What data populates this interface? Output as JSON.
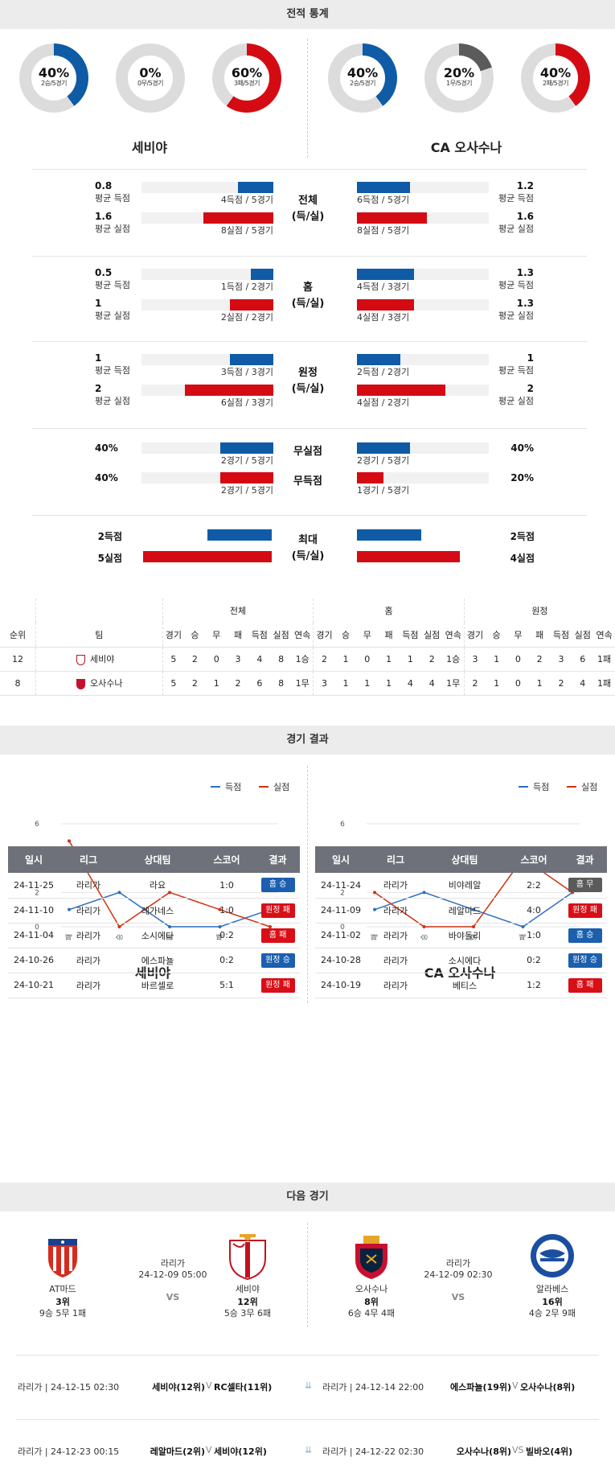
{
  "sections": {
    "stats": "전적 통계",
    "results": "경기 결과",
    "next": "다음 경기"
  },
  "colors": {
    "blue": "#0f5ba6",
    "red": "#d40b13",
    "gray": "#5b5b5b",
    "track": "#dcdcdc"
  },
  "donuts": [
    {
      "pct": "40%",
      "sub": "2승/5경기",
      "value": 0.4,
      "color": "blue"
    },
    {
      "pct": "0%",
      "sub": "0무/5경기",
      "value": 0.0,
      "color": "gray"
    },
    {
      "pct": "60%",
      "sub": "3패/5경기",
      "value": 0.6,
      "color": "red"
    },
    {
      "pct": "40%",
      "sub": "2승/5경기",
      "value": 0.4,
      "color": "blue"
    },
    {
      "pct": "20%",
      "sub": "1무/5경기",
      "value": 0.2,
      "color": "gray"
    },
    {
      "pct": "40%",
      "sub": "2패/5경기",
      "value": 0.4,
      "color": "red"
    }
  ],
  "teams": {
    "home": "세비야",
    "away": "CA 오사수나"
  },
  "groups": [
    {
      "center": [
        "전체",
        "(득/실)"
      ],
      "left": [
        {
          "num": "0.8",
          "lbl": "평균 득점",
          "cap": "4득점 / 5경기",
          "fill": 0.27,
          "color": "blue"
        },
        {
          "num": "1.6",
          "lbl": "평균 실점",
          "cap": "8실점 / 5경기",
          "fill": 0.53,
          "color": "red"
        }
      ],
      "right": [
        {
          "num": "1.2",
          "lbl": "평균 득점",
          "cap": "6득점 / 5경기",
          "fill": 0.4,
          "color": "blue"
        },
        {
          "num": "1.6",
          "lbl": "평균 실점",
          "cap": "8실점 / 5경기",
          "fill": 0.53,
          "color": "red"
        }
      ]
    },
    {
      "center": [
        "홈",
        "(득/실)"
      ],
      "left": [
        {
          "num": "0.5",
          "lbl": "평균 득점",
          "cap": "1득점 / 2경기",
          "fill": 0.17,
          "color": "blue"
        },
        {
          "num": "1",
          "lbl": "평균 실점",
          "cap": "2실점 / 2경기",
          "fill": 0.33,
          "color": "red"
        }
      ],
      "right": [
        {
          "num": "1.3",
          "lbl": "평균 득점",
          "cap": "4득점 / 3경기",
          "fill": 0.43,
          "color": "blue"
        },
        {
          "num": "1.3",
          "lbl": "평균 실점",
          "cap": "4실점 / 3경기",
          "fill": 0.43,
          "color": "red"
        }
      ]
    },
    {
      "center": [
        "원정",
        "(득/실)"
      ],
      "left": [
        {
          "num": "1",
          "lbl": "평균 득점",
          "cap": "3득점 / 3경기",
          "fill": 0.33,
          "color": "blue"
        },
        {
          "num": "2",
          "lbl": "평균 실점",
          "cap": "6실점 / 3경기",
          "fill": 0.67,
          "color": "red"
        }
      ],
      "right": [
        {
          "num": "1",
          "lbl": "평균 득점",
          "cap": "2득점 / 2경기",
          "fill": 0.33,
          "color": "blue"
        },
        {
          "num": "2",
          "lbl": "평균 실점",
          "cap": "4실점 / 2경기",
          "fill": 0.67,
          "color": "red"
        }
      ]
    }
  ],
  "clean": {
    "rows": [
      {
        "center": "무실점",
        "lnum": "40%",
        "lcap": "2경기 / 5경기",
        "lfill": 0.4,
        "rnum": "40%",
        "rcap": "2경기 / 5경기",
        "rfill": 0.4,
        "color": "blue"
      },
      {
        "center": "무득점",
        "lnum": "40%",
        "lcap": "2경기 / 5경기",
        "lfill": 0.4,
        "rnum": "20%",
        "rcap": "1경기 / 5경기",
        "rfill": 0.2,
        "color": "red"
      }
    ]
  },
  "max": {
    "center": [
      "최대",
      "(득/실)"
    ],
    "rows": [
      {
        "lnum": "2득점",
        "lfill": 0.5,
        "rnum": "2득점",
        "rfill": 0.5,
        "color": "blue"
      },
      {
        "lnum": "5실점",
        "lfill": 1.0,
        "rnum": "4실점",
        "rfill": 0.8,
        "color": "red"
      }
    ]
  },
  "standings": {
    "group_headers": [
      "전체",
      "홈",
      "원정"
    ],
    "cols": [
      "순위",
      "팀",
      "경기",
      "승",
      "무",
      "패",
      "득점",
      "실점",
      "연속",
      "경기",
      "승",
      "무",
      "패",
      "득점",
      "실점",
      "연속",
      "경기",
      "승",
      "무",
      "패",
      "득점",
      "실점",
      "연속"
    ],
    "rows": [
      {
        "rank": "12",
        "team": "세비야",
        "vals": [
          "5",
          "2",
          "0",
          "3",
          "4",
          "8",
          "1승",
          "2",
          "1",
          "0",
          "1",
          "1",
          "2",
          "1승",
          "3",
          "1",
          "0",
          "2",
          "3",
          "6",
          "1패"
        ]
      },
      {
        "rank": "8",
        "team": "오사수나",
        "vals": [
          "5",
          "2",
          "1",
          "2",
          "6",
          "8",
          "1무",
          "3",
          "1",
          "1",
          "1",
          "4",
          "4",
          "1무",
          "2",
          "1",
          "0",
          "1",
          "2",
          "4",
          "1패"
        ]
      }
    ]
  },
  "chart_data": [
    {
      "type": "line",
      "x": [
        "패",
        "승",
        "패",
        "패",
        "승"
      ],
      "ylim": [
        0,
        6
      ],
      "yticks": [
        "0",
        "2",
        "4",
        "6"
      ],
      "series": [
        {
          "name": "득점",
          "values": [
            1,
            2,
            0,
            0,
            1
          ],
          "color": "#2c6fbf"
        },
        {
          "name": "실점",
          "values": [
            5,
            0,
            2,
            1,
            0
          ],
          "color": "#d1310f"
        }
      ],
      "legend": "top-right"
    },
    {
      "type": "line",
      "x": [
        "패",
        "승",
        "승",
        "패",
        "무"
      ],
      "ylim": [
        0,
        6
      ],
      "yticks": [
        "0",
        "2",
        "4",
        "6"
      ],
      "series": [
        {
          "name": "득점",
          "values": [
            1,
            2,
            1,
            0,
            2
          ],
          "color": "#2c6fbf"
        },
        {
          "name": "실점",
          "values": [
            2,
            0,
            0,
            4,
            2
          ],
          "color": "#d1310f"
        }
      ],
      "legend": "top-right"
    }
  ],
  "results": {
    "headers": [
      "일시",
      "리그",
      "상대팀",
      "스코어",
      "결과"
    ],
    "left": [
      {
        "date": "24-11-25",
        "league": "라리가",
        "opp": "라요",
        "score": "1:0",
        "res": "홈 승",
        "color": "blue"
      },
      {
        "date": "24-11-10",
        "league": "라리가",
        "opp": "레가네스",
        "score": "1:0",
        "res": "원정 패",
        "color": "red"
      },
      {
        "date": "24-11-04",
        "league": "라리가",
        "opp": "소시에다",
        "score": "0:2",
        "res": "홈 패",
        "color": "red"
      },
      {
        "date": "24-10-26",
        "league": "라리가",
        "opp": "에스파뇰",
        "score": "0:2",
        "res": "원정 승",
        "color": "blue"
      },
      {
        "date": "24-10-21",
        "league": "라리가",
        "opp": "바르셀로",
        "score": "5:1",
        "res": "원정 패",
        "color": "red"
      }
    ],
    "right": [
      {
        "date": "24-11-24",
        "league": "라리가",
        "opp": "비야레알",
        "score": "2:2",
        "res": "홈 무",
        "color": "gray"
      },
      {
        "date": "24-11-09",
        "league": "라리가",
        "opp": "레알마드",
        "score": "4:0",
        "res": "원정 패",
        "color": "red"
      },
      {
        "date": "24-11-02",
        "league": "라리가",
        "opp": "바야돌리",
        "score": "1:0",
        "res": "홈 승",
        "color": "blue"
      },
      {
        "date": "24-10-28",
        "league": "라리가",
        "opp": "소시에다",
        "score": "0:2",
        "res": "원정 승",
        "color": "blue"
      },
      {
        "date": "24-10-19",
        "league": "라리가",
        "opp": "베티스",
        "score": "1:2",
        "res": "홈 패",
        "color": "red"
      }
    ]
  },
  "next": {
    "left": {
      "league": "라리가",
      "time": "24-12-09 05:00",
      "vs": "VS",
      "home": {
        "name": "AT마드",
        "rank": "3위",
        "rec": "9승 5무 1패"
      },
      "away": {
        "name": "세비야",
        "rank": "12위",
        "rec": "5승 3무 6패"
      }
    },
    "right": {
      "league": "라리가",
      "time": "24-12-09 02:30",
      "vs": "VS",
      "home": {
        "name": "오사수나",
        "rank": "8위",
        "rec": "6승 4무 4패"
      },
      "away": {
        "name": "알라베스",
        "rank": "16위",
        "rec": "4승 2무 9패"
      }
    }
  },
  "schedule": [
    {
      "left": {
        "meta": "라리가 | 24-12-15 02:30",
        "home": "세비야(12위)",
        "v": "V",
        "away": "RC셀타(11위)"
      },
      "right": {
        "meta": "라리가 | 24-12-14 22:00",
        "home": "에스파뇰(19위)",
        "v": "V",
        "away": "오사수나(8위)"
      }
    },
    {
      "left": {
        "meta": "라리가 | 24-12-23 00:15",
        "home": "레알마드(2위)",
        "v": "V",
        "away": "세비야(12위)"
      },
      "right": {
        "meta": "라리가 | 24-12-22 02:30",
        "home": "오사수나(8위)",
        "v": "VS",
        "away": "빌바오(4위)"
      }
    }
  ]
}
